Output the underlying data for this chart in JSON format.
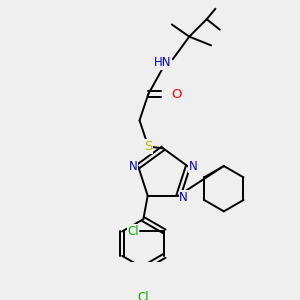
{
  "bg_color": "#efefef",
  "atom_colors": {
    "C": "#000000",
    "N": "#0000cd",
    "O": "#ff0000",
    "S": "#b8b800",
    "Cl": "#00aa00",
    "H": "#4a7a7a"
  },
  "font_size": 8.5,
  "fig_size": [
    3.0,
    3.0
  ],
  "dpi": 100
}
